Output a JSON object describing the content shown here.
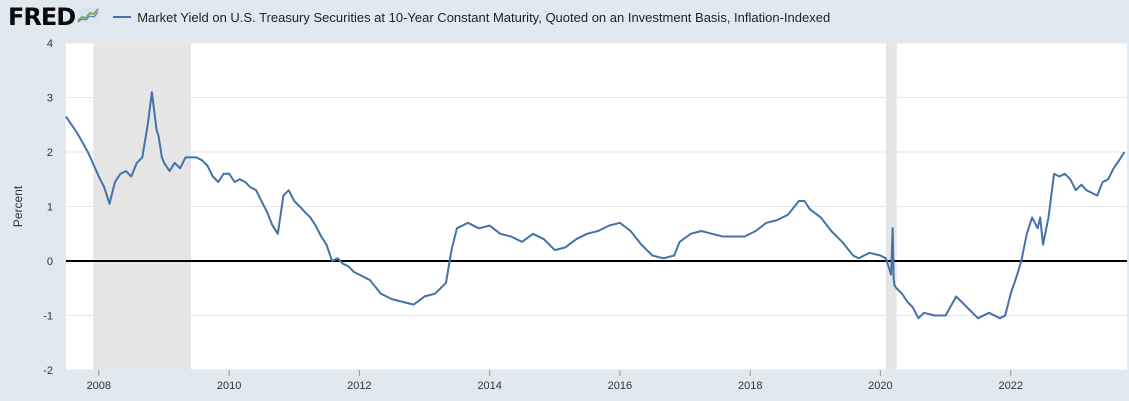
{
  "header": {
    "logo_text": "FRED",
    "logo_icon": "chart-trend-icon"
  },
  "colors": {
    "background": "#e1e9f0",
    "plot_background": "#ffffff",
    "series": "#4572a7",
    "recession": "#e5e5e5",
    "zero_line": "#000000",
    "grid": "#e6e6e6"
  },
  "chart_data": {
    "type": "line",
    "xlabel": "",
    "ylabel": "Percent",
    "ylim": [
      -2,
      4
    ],
    "yticks": [
      4,
      3,
      2,
      1,
      0,
      -1,
      -2
    ],
    "xlim": [
      "2007-07-01",
      "2023-10-15"
    ],
    "xticks": [
      "2008",
      "2010",
      "2012",
      "2014",
      "2016",
      "2018",
      "2020",
      "2022"
    ],
    "grid": true,
    "legend": "top-left",
    "recessions": [
      {
        "start": "2007-12-01",
        "end": "2009-06-01"
      },
      {
        "start": "2020-02-01",
        "end": "2020-04-01"
      }
    ],
    "reference_line": 0,
    "series": [
      {
        "name": "Market Yield on U.S. Treasury Securities at 10-Year Constant Maturity, Quoted on an Investment Basis, Inflation-Indexed",
        "x": [
          "2007-07-01",
          "2007-09-01",
          "2007-11-01",
          "2008-01-01",
          "2008-02-01",
          "2008-03-01",
          "2008-04-01",
          "2008-05-01",
          "2008-06-01",
          "2008-07-01",
          "2008-08-01",
          "2008-09-01",
          "2008-10-01",
          "2008-10-25",
          "2008-11-01",
          "2008-11-20",
          "2008-12-01",
          "2008-12-20",
          "2009-01-01",
          "2009-02-01",
          "2009-03-01",
          "2009-04-01",
          "2009-05-01",
          "2009-06-01",
          "2009-07-01",
          "2009-08-01",
          "2009-09-01",
          "2009-10-01",
          "2009-11-01",
          "2009-12-01",
          "2010-01-01",
          "2010-02-01",
          "2010-03-01",
          "2010-04-01",
          "2010-05-01",
          "2010-06-01",
          "2010-07-01",
          "2010-08-01",
          "2010-09-01",
          "2010-10-01",
          "2010-11-01",
          "2010-12-01",
          "2011-01-01",
          "2011-02-01",
          "2011-03-01",
          "2011-04-01",
          "2011-05-01",
          "2011-06-01",
          "2011-07-01",
          "2011-08-01",
          "2011-09-01",
          "2011-10-01",
          "2011-11-01",
          "2011-12-01",
          "2012-01-01",
          "2012-03-01",
          "2012-05-01",
          "2012-07-01",
          "2012-09-01",
          "2012-11-01",
          "2013-01-01",
          "2013-03-01",
          "2013-05-01",
          "2013-06-01",
          "2013-07-01",
          "2013-09-01",
          "2013-11-01",
          "2014-01-01",
          "2014-03-01",
          "2014-05-01",
          "2014-07-01",
          "2014-09-01",
          "2014-11-01",
          "2015-01-01",
          "2015-03-01",
          "2015-05-01",
          "2015-07-01",
          "2015-09-01",
          "2015-11-01",
          "2016-01-01",
          "2016-03-01",
          "2016-05-01",
          "2016-07-01",
          "2016-09-01",
          "2016-11-01",
          "2016-12-01",
          "2017-02-01",
          "2017-04-01",
          "2017-06-01",
          "2017-08-01",
          "2017-10-01",
          "2017-12-01",
          "2018-02-01",
          "2018-04-01",
          "2018-06-01",
          "2018-08-01",
          "2018-10-01",
          "2018-11-01",
          "2018-12-01",
          "2019-02-01",
          "2019-04-01",
          "2019-06-01",
          "2019-08-01",
          "2019-09-01",
          "2019-11-01",
          "2020-01-01",
          "2020-02-01",
          "2020-03-01",
          "2020-03-10",
          "2020-03-15",
          "2020-03-20",
          "2020-04-01",
          "2020-05-01",
          "2020-06-01",
          "2020-07-01",
          "2020-08-01",
          "2020-09-01",
          "2020-11-01",
          "2021-01-01",
          "2021-03-01",
          "2021-05-01",
          "2021-07-01",
          "2021-09-01",
          "2021-11-01",
          "2021-12-01",
          "2022-01-01",
          "2022-02-01",
          "2022-03-01",
          "2022-04-01",
          "2022-05-01",
          "2022-06-01",
          "2022-06-15",
          "2022-07-01",
          "2022-08-01",
          "2022-09-01",
          "2022-10-01",
          "2022-11-01",
          "2022-12-01",
          "2023-01-01",
          "2023-02-01",
          "2023-03-01",
          "2023-04-01",
          "2023-05-01",
          "2023-06-01",
          "2023-07-01",
          "2023-08-01",
          "2023-09-01",
          "2023-10-01"
        ],
        "values": [
          2.65,
          2.35,
          2.0,
          1.55,
          1.35,
          1.05,
          1.45,
          1.6,
          1.65,
          1.55,
          1.8,
          1.9,
          2.5,
          3.1,
          2.9,
          2.4,
          2.3,
          1.9,
          1.8,
          1.65,
          1.8,
          1.7,
          1.9,
          1.9,
          1.9,
          1.85,
          1.75,
          1.55,
          1.45,
          1.6,
          1.6,
          1.45,
          1.5,
          1.45,
          1.35,
          1.3,
          1.1,
          0.9,
          0.65,
          0.5,
          1.2,
          1.3,
          1.1,
          1.0,
          0.9,
          0.8,
          0.65,
          0.45,
          0.3,
          0.0,
          0.05,
          -0.05,
          -0.1,
          -0.2,
          -0.25,
          -0.35,
          -0.6,
          -0.7,
          -0.75,
          -0.8,
          -0.65,
          -0.6,
          -0.4,
          0.2,
          0.6,
          0.7,
          0.6,
          0.65,
          0.5,
          0.45,
          0.35,
          0.5,
          0.4,
          0.2,
          0.25,
          0.4,
          0.5,
          0.55,
          0.65,
          0.7,
          0.55,
          0.3,
          0.1,
          0.05,
          0.1,
          0.35,
          0.5,
          0.55,
          0.5,
          0.45,
          0.45,
          0.45,
          0.55,
          0.7,
          0.75,
          0.85,
          1.1,
          1.1,
          0.95,
          0.8,
          0.55,
          0.35,
          0.1,
          0.05,
          0.15,
          0.1,
          0.05,
          -0.25,
          0.6,
          -0.3,
          -0.45,
          -0.5,
          -0.6,
          -0.75,
          -0.85,
          -1.05,
          -0.95,
          -1.0,
          -1.0,
          -0.65,
          -0.85,
          -1.05,
          -0.95,
          -1.05,
          -1.0,
          -0.6,
          -0.3,
          0.0,
          0.5,
          0.8,
          0.6,
          0.8,
          0.3,
          0.8,
          1.6,
          1.55,
          1.6,
          1.5,
          1.3,
          1.4,
          1.3,
          1.25,
          1.2,
          1.45,
          1.5,
          1.7,
          1.85,
          2.0
        ]
      }
    ]
  }
}
